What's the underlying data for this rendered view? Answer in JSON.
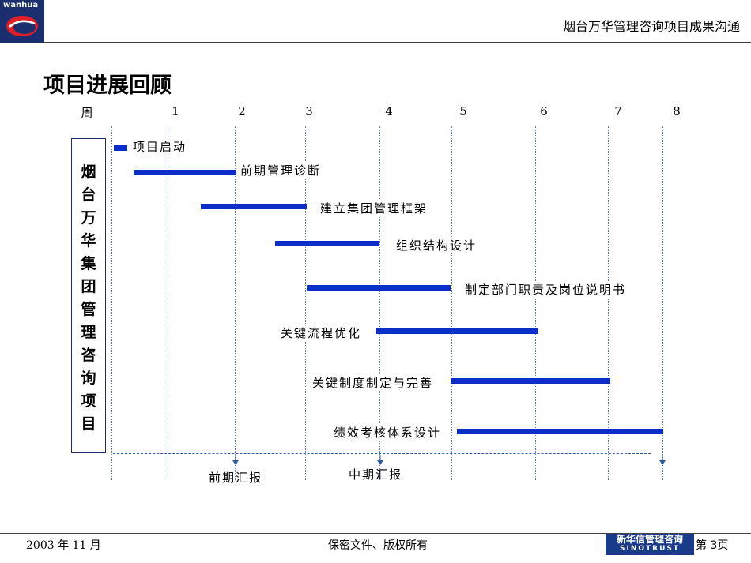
{
  "logo": {
    "text": "wanhua"
  },
  "header": {
    "title": "烟台万华管理咨询项目成果沟通"
  },
  "page_title": "项目进展回顾",
  "timeline": {
    "week_label": "周",
    "weeks": [
      "1",
      "2",
      "3",
      "4",
      "5",
      "6",
      "7",
      "8"
    ]
  },
  "side_label": "烟台万华集团管理咨询项目",
  "tasks": [
    {
      "label": "项目启动"
    },
    {
      "label": "前期管理诊断"
    },
    {
      "label": "建立集团管理框架"
    },
    {
      "label": "组织结构设计"
    },
    {
      "label": "制定部门职责及岗位说明书"
    },
    {
      "label": "关键流程优化"
    },
    {
      "label": "关键制度制定与完善"
    },
    {
      "label": "绩效考核体系设计"
    }
  ],
  "milestones": [
    {
      "label": "前期汇报"
    },
    {
      "label": "中期汇报"
    }
  ],
  "footer": {
    "date": "2003 年 11 月",
    "confidential": "保密文件、版权所有",
    "brand_cn": "新华信管理咨询",
    "brand_en": "SINOTRUST",
    "page": "第 3页"
  },
  "colors": {
    "bar": "#0c2ec8",
    "navy": "#1a3a8a",
    "grid": "#5d86c8"
  }
}
